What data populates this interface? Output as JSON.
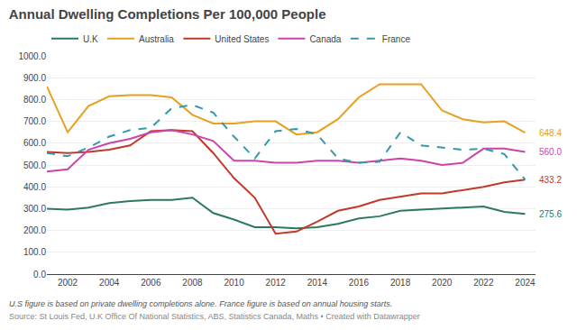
{
  "chart_data": {
    "type": "line",
    "title": "Annual Dwelling Completions Per 100,000 People",
    "x": [
      2001,
      2002,
      2003,
      2004,
      2005,
      2006,
      2007,
      2008,
      2009,
      2010,
      2011,
      2012,
      2013,
      2014,
      2015,
      2016,
      2017,
      2018,
      2019,
      2020,
      2021,
      2022,
      2023,
      2024
    ],
    "series": [
      {
        "name": "U.K",
        "color": "#2d7a5a",
        "line_style": "solid",
        "values": [
          300,
          295,
          305,
          325,
          335,
          340,
          340,
          350,
          280,
          250,
          215,
          215,
          210,
          215,
          230,
          255,
          265,
          290,
          295,
          300,
          305,
          310,
          285,
          275.6
        ]
      },
      {
        "name": "Australia",
        "color": "#e8a020",
        "line_style": "solid",
        "values": [
          860,
          650,
          770,
          815,
          820,
          820,
          810,
          730,
          690,
          690,
          700,
          700,
          640,
          650,
          710,
          810,
          870,
          870,
          870,
          750,
          710,
          695,
          700,
          648.4
        ]
      },
      {
        "name": "United States",
        "color": "#c0392b",
        "line_style": "solid",
        "values": [
          560,
          555,
          560,
          570,
          590,
          655,
          660,
          655,
          555,
          440,
          350,
          185,
          195,
          240,
          290,
          310,
          340,
          355,
          370,
          370,
          385,
          400,
          420,
          433.2
        ]
      },
      {
        "name": "Canada",
        "color": "#cc44aa",
        "line_style": "solid",
        "values": [
          470,
          480,
          570,
          600,
          620,
          650,
          660,
          640,
          610,
          520,
          520,
          510,
          510,
          520,
          520,
          510,
          520,
          530,
          520,
          500,
          510,
          575,
          575,
          560.0
        ]
      },
      {
        "name": "France",
        "color": "#3399aa",
        "line_style": "dashed",
        "values": [
          555,
          540,
          580,
          630,
          660,
          670,
          760,
          775,
          740,
          630,
          530,
          655,
          665,
          640,
          530,
          510,
          515,
          650,
          590,
          580,
          570,
          575,
          550,
          433.2
        ]
      }
    ],
    "xlim": [
      2001,
      2024.5
    ],
    "xticks": [
      2002,
      2004,
      2006,
      2008,
      2010,
      2012,
      2014,
      2016,
      2018,
      2020,
      2022,
      2024
    ],
    "ylim": [
      0,
      1000
    ],
    "yticks": [
      {
        "value": 0,
        "label": "0.0"
      },
      {
        "value": 100,
        "label": "100.0"
      },
      {
        "value": 200,
        "label": "200.0"
      },
      {
        "value": 300,
        "label": "300.0"
      },
      {
        "value": 400,
        "label": "400.0"
      },
      {
        "value": 500,
        "label": "500.0"
      },
      {
        "value": 600,
        "label": "600.0"
      },
      {
        "value": 700,
        "label": "700.0"
      },
      {
        "value": 800,
        "label": "800.0"
      },
      {
        "value": 900,
        "label": "900.0"
      },
      {
        "value": 1000,
        "label": "1000.0"
      }
    ],
    "grid": "y",
    "legend": "top",
    "annotations": [
      {
        "text": "648.4",
        "x": 2024,
        "y": 648.4,
        "color": "#e8a020"
      },
      {
        "text": "560.0",
        "x": 2024,
        "y": 560.0,
        "color": "#cc44aa"
      },
      {
        "text": "433.2",
        "x": 2024,
        "y": 433.2,
        "color": "#c0392b"
      },
      {
        "text": "275.6",
        "x": 2024,
        "y": 275.6,
        "color": "#2d7a5a"
      },
      "U.S figure is based on private dwelling completions alone. France figure is based on annual housing starts.",
      "Source: St Louis Fed, U.K Office Of National Statistics, ABS, Statistics Canada, Maths • Created with Datawrapper"
    ]
  }
}
